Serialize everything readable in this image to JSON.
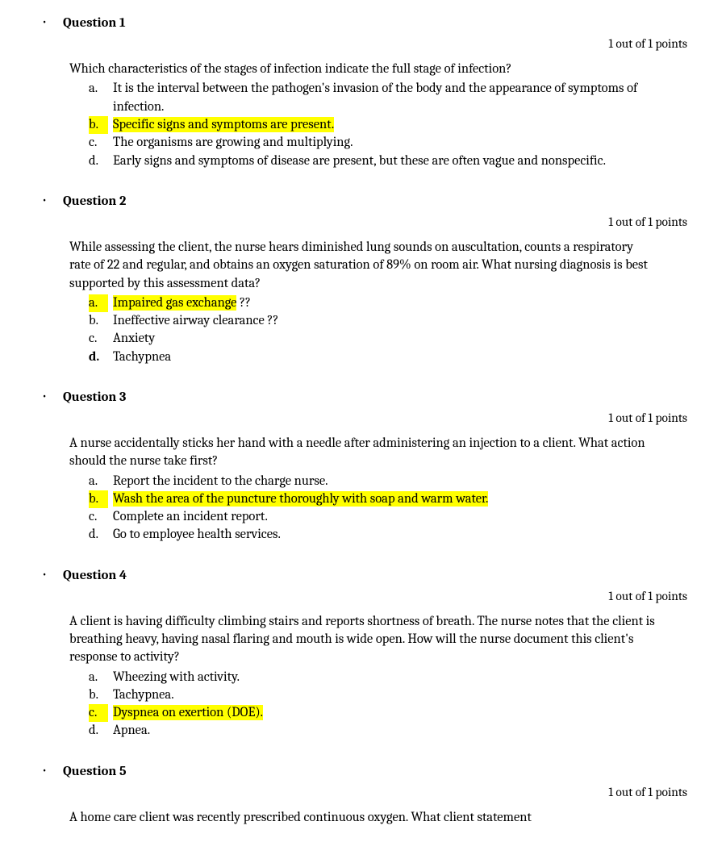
{
  "colors": {
    "highlight": "#ffff00",
    "text": "#000000"
  },
  "questions": [
    {
      "title": "Question 1",
      "points": "1 out of 1 points",
      "stem": "Which characteristics of the stages of infection indicate the full stage of infection?",
      "options": [
        {
          "letter": "a.",
          "text": "It is the interval between the pathogen's invasion of the body and the appearance of symptoms of infection.",
          "highlighted": false,
          "letter_bold": false
        },
        {
          "letter": "b.",
          "text": "Specific signs and symptoms are present.",
          "highlighted": true,
          "letter_bold": false
        },
        {
          "letter": "c.",
          "text": "The organisms are growing and multiplying.",
          "highlighted": false,
          "letter_bold": false
        },
        {
          "letter": "d.",
          "text": "Early signs and symptoms of disease are present, but these are often vague and nonspecific.",
          "highlighted": false,
          "letter_bold": false
        }
      ]
    },
    {
      "title": "Question 2",
      "points": "1 out of 1 points",
      "stem": "While assessing the client, the nurse hears diminished lung sounds on auscultation, counts a respiratory rate of 22 and regular, and obtains an oxygen saturation of 89% on room air. What nursing diagnosis is best supported by this assessment data?",
      "options": [
        {
          "letter": "a.",
          "text": "Impaired gas exchange",
          "suffix": " ??",
          "highlighted": true,
          "letter_bold": false
        },
        {
          "letter": "b.",
          "text": "Ineffective airway clearance ??",
          "highlighted": false,
          "letter_bold": false
        },
        {
          "letter": "c.",
          "text": "Anxiety",
          "highlighted": false,
          "letter_bold": false
        },
        {
          "letter": "d.",
          "text": "Tachypnea",
          "highlighted": false,
          "letter_bold": true
        }
      ]
    },
    {
      "title": "Question 3",
      "points": "1 out of 1 points",
      "stem": "A nurse accidentally sticks her hand with a needle after administering an injection to a client. What action should the nurse take first?",
      "options": [
        {
          "letter": "a.",
          "text": "Report the incident to the charge nurse.",
          "highlighted": false,
          "letter_bold": false
        },
        {
          "letter": "b.",
          "text": "Wash the area of the puncture thoroughly with soap and warm water.",
          "highlighted": true,
          "letter_bold": false
        },
        {
          "letter": "c.",
          "text": "Complete an incident report.",
          "highlighted": false,
          "letter_bold": false
        },
        {
          "letter": "d.",
          "text": "Go to employee health services.",
          "highlighted": false,
          "letter_bold": false
        }
      ]
    },
    {
      "title": "Question 4",
      "points": "1 out of 1 points",
      "stem": "A client is having difficulty climbing stairs and reports shortness of breath. The nurse notes that the client is breathing heavy, having nasal flaring and mouth is wide open. How will the nurse document this client's response to activity?",
      "options": [
        {
          "letter": "a.",
          "text": "Wheezing with activity.",
          "highlighted": false,
          "letter_bold": false
        },
        {
          "letter": "b.",
          "text": "Tachypnea.",
          "highlighted": false,
          "letter_bold": false
        },
        {
          "letter": "c.",
          "text": "Dyspnea on exertion (DOE).",
          "highlighted": true,
          "letter_bold": false
        },
        {
          "letter": "d.",
          "text": "Apnea.",
          "highlighted": false,
          "letter_bold": false
        }
      ]
    },
    {
      "title": "Question 5",
      "points": "1 out of 1 points",
      "stem": "A home care client was recently prescribed continuous oxygen. What client statement",
      "options": []
    }
  ]
}
